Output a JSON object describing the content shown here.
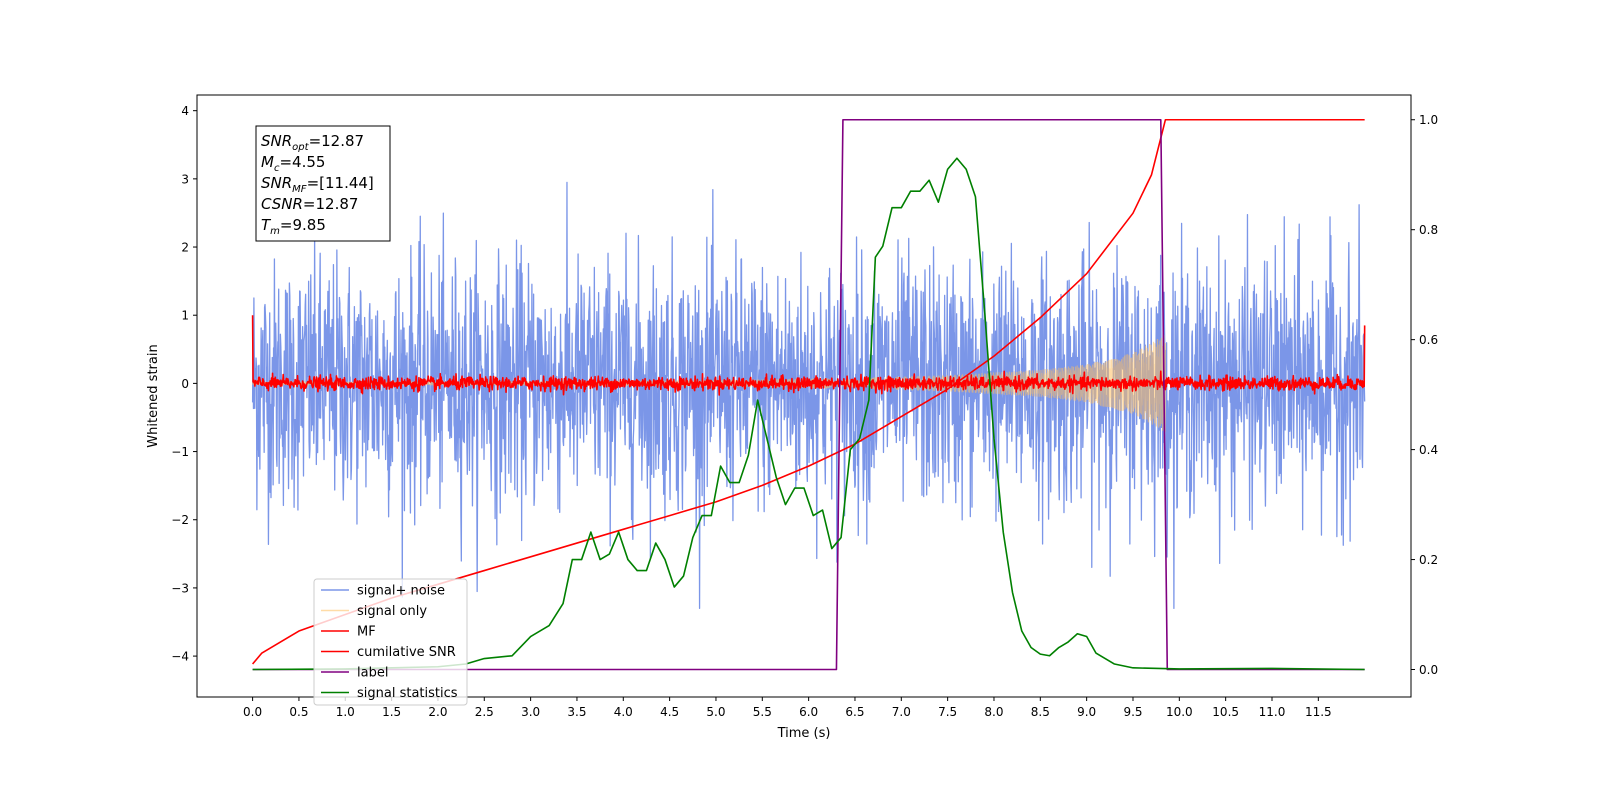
{
  "chart_data": {
    "type": "line",
    "xlabel": "Time (s)",
    "ylabel": "Whitened strain",
    "xlim": [
      -0.6,
      12.5
    ],
    "ylim": [
      -4.6,
      4.23
    ],
    "y2lim": [
      -0.05,
      1.045
    ],
    "xticks": [
      0.0,
      0.5,
      1.0,
      1.5,
      2.0,
      2.5,
      3.0,
      3.5,
      4.0,
      4.5,
      5.0,
      5.5,
      6.0,
      6.5,
      7.0,
      7.5,
      8.0,
      8.5,
      9.0,
      9.5,
      10.0,
      10.5,
      11.0,
      11.5
    ],
    "xtick_labels": [
      "0.0",
      "0.5",
      "1.0",
      "1.5",
      "2.0",
      "2.5",
      "3.0",
      "3.5",
      "4.0",
      "4.5",
      "5.0",
      "5.5",
      "6.0",
      "6.5",
      "7.0",
      "7.5",
      "8.0",
      "8.5",
      "9.0",
      "9.5",
      "10.0",
      "10.5",
      "11.0",
      "11.5"
    ],
    "yticks": [
      -4,
      -3,
      -2,
      -1,
      0,
      1,
      2,
      3,
      4
    ],
    "ytick_labels": [
      "−4",
      "−3",
      "−2",
      "−1",
      "0",
      "1",
      "2",
      "3",
      "4"
    ],
    "y2ticks": [
      0.0,
      0.2,
      0.4,
      0.6,
      0.8,
      1.0
    ],
    "y2tick_labels": [
      "0.0",
      "0.2",
      "0.4",
      "0.6",
      "0.8",
      "1.0"
    ],
    "grid": false,
    "legend_position": "lower-left",
    "annotation": [
      {
        "sym": "SNR",
        "sub": "opt",
        "val": "=12.87"
      },
      {
        "sym": "M",
        "sub": "c",
        "val": "=4.55"
      },
      {
        "sym": "SNR",
        "sub": "MF",
        "val": "=[11.44]"
      },
      {
        "sym": "CSNR",
        "sub": "",
        "val": "=12.87"
      },
      {
        "sym": "T",
        "sub": "m",
        "val": "=9.85"
      }
    ],
    "series": [
      {
        "name": "signal+ noise",
        "color": "#7b96e8",
        "axis": "left",
        "kind": "noise",
        "x_range": [
          0.0,
          12.0
        ],
        "amplitude_std": 0.9,
        "peak_extent": [
          -3.3,
          3.8
        ]
      },
      {
        "name": "signal only",
        "color": "#ffc060",
        "axis": "left",
        "kind": "chirp",
        "x_range": [
          0.0,
          9.85
        ],
        "envelope": {
          "x": [
            0.0,
            3.0,
            5.0,
            6.5,
            7.5,
            8.5,
            9.0,
            9.5,
            9.7,
            9.85
          ],
          "amp": [
            0.02,
            0.03,
            0.05,
            0.08,
            0.12,
            0.2,
            0.28,
            0.45,
            0.6,
            0.72
          ]
        }
      },
      {
        "name": "MF",
        "color": "#ff0000",
        "axis": "left",
        "kind": "noise",
        "x_range": [
          0.0,
          12.0
        ],
        "amplitude_std": 0.05,
        "edge_values": [
          1.0,
          0.85
        ]
      },
      {
        "name": "cumilative SNR",
        "color": "#ff0000",
        "axis": "right",
        "x": [
          0.0,
          0.1,
          0.5,
          1.0,
          1.5,
          2.0,
          2.5,
          3.0,
          3.5,
          4.0,
          4.5,
          5.0,
          5.5,
          6.0,
          6.5,
          7.0,
          7.5,
          8.0,
          8.5,
          9.0,
          9.5,
          9.7,
          9.85,
          12.0
        ],
        "y": [
          0.01,
          0.03,
          0.07,
          0.1,
          0.13,
          0.155,
          0.18,
          0.205,
          0.23,
          0.255,
          0.28,
          0.305,
          0.335,
          0.37,
          0.41,
          0.46,
          0.51,
          0.57,
          0.64,
          0.72,
          0.83,
          0.9,
          1.0,
          1.0
        ]
      },
      {
        "name": "label",
        "color": "#800080",
        "axis": "right",
        "x": [
          0.0,
          6.3,
          6.37,
          9.8,
          9.87,
          12.0
        ],
        "y": [
          0.0,
          0.0,
          1.0,
          1.0,
          0.0,
          0.0
        ]
      },
      {
        "name": "signal statistics",
        "color": "#008000",
        "axis": "right",
        "x": [
          0.0,
          1.0,
          2.0,
          2.3,
          2.5,
          2.8,
          3.0,
          3.2,
          3.35,
          3.45,
          3.55,
          3.65,
          3.75,
          3.85,
          3.95,
          4.05,
          4.15,
          4.25,
          4.35,
          4.45,
          4.55,
          4.65,
          4.75,
          4.85,
          4.95,
          5.05,
          5.15,
          5.25,
          5.35,
          5.45,
          5.55,
          5.65,
          5.75,
          5.85,
          5.95,
          6.05,
          6.15,
          6.25,
          6.35,
          6.45,
          6.55,
          6.65,
          6.72,
          6.8,
          6.9,
          7.0,
          7.1,
          7.2,
          7.3,
          7.4,
          7.5,
          7.6,
          7.7,
          7.8,
          7.9,
          8.0,
          8.1,
          8.2,
          8.3,
          8.4,
          8.5,
          8.6,
          8.7,
          8.8,
          8.9,
          9.0,
          9.1,
          9.3,
          9.5,
          10.0,
          11.0,
          12.0
        ],
        "y": [
          0.0,
          0.001,
          0.005,
          0.01,
          0.02,
          0.025,
          0.06,
          0.08,
          0.12,
          0.2,
          0.2,
          0.25,
          0.2,
          0.21,
          0.25,
          0.2,
          0.18,
          0.18,
          0.23,
          0.2,
          0.15,
          0.17,
          0.24,
          0.28,
          0.28,
          0.37,
          0.34,
          0.34,
          0.39,
          0.49,
          0.42,
          0.35,
          0.3,
          0.33,
          0.33,
          0.28,
          0.29,
          0.22,
          0.24,
          0.4,
          0.42,
          0.49,
          0.75,
          0.77,
          0.84,
          0.84,
          0.87,
          0.87,
          0.89,
          0.85,
          0.91,
          0.93,
          0.91,
          0.86,
          0.65,
          0.42,
          0.25,
          0.14,
          0.07,
          0.04,
          0.028,
          0.025,
          0.04,
          0.05,
          0.065,
          0.06,
          0.03,
          0.01,
          0.003,
          0.001,
          0.002,
          0.0
        ]
      }
    ]
  }
}
